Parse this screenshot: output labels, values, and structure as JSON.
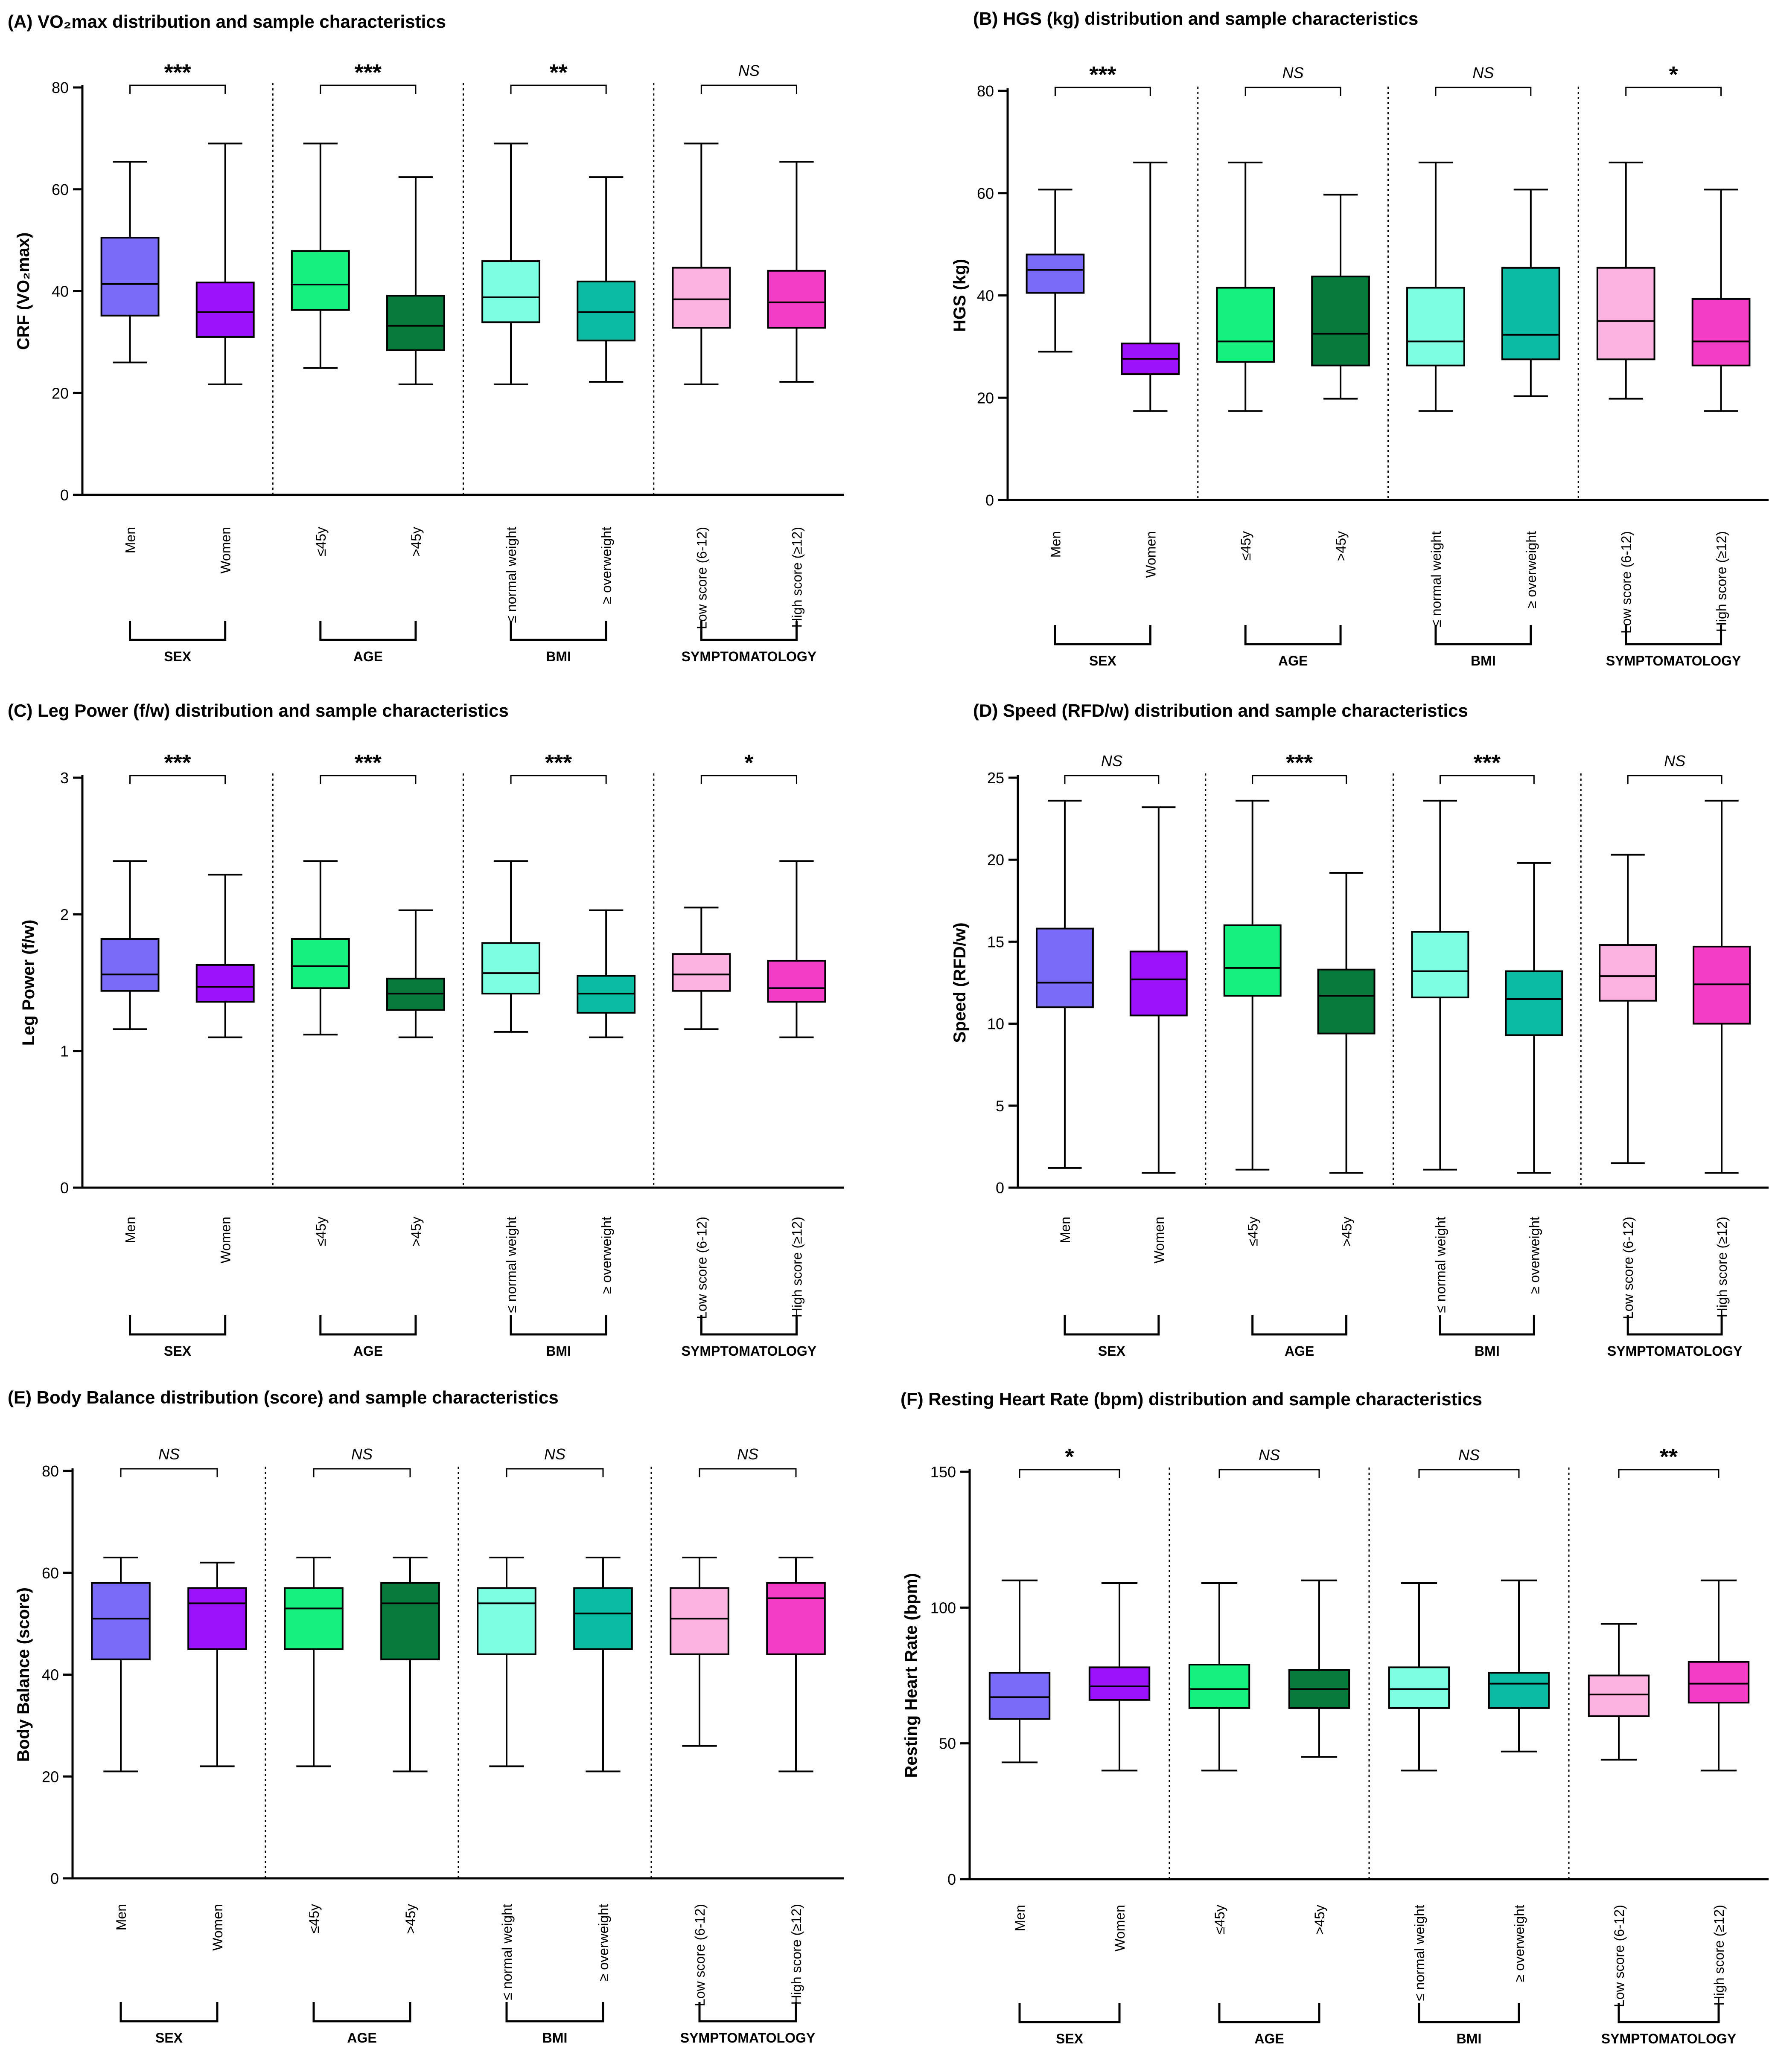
{
  "colors": {
    "Men": "#7a6cf9",
    "Women": "#9b12fb",
    "age_young": "#16f07f",
    "age_old": "#06793b",
    "bmi_normal": "#7cfee0",
    "bmi_over": "#0bbca3",
    "sym_low": "#fcb2e0",
    "sym_high": "#f33dc6"
  },
  "chart_data": [
    {
      "type": "box",
      "title": "(A) VO₂max distribution and sample characteristics",
      "ylabel": "CRF (VO₂max)",
      "ylim": [
        0,
        80
      ],
      "yticks": [
        "0",
        "20",
        "40",
        "60",
        "80"
      ],
      "categories": [
        "Men",
        "Women",
        "≤45y",
        ">45y",
        "≤ normal weight",
        "≥ overweight",
        "Low score (6-12)",
        "High score (≥12)"
      ],
      "groups": [
        "SEX",
        "AGE",
        "BMI",
        "SYMPTOMATOLOGY"
      ],
      "significance": [
        "***",
        "***",
        "**",
        "NS"
      ],
      "boxes": [
        {
          "min": 26,
          "q1": 35.2,
          "median": 41.4,
          "q3": 50.5,
          "max": 65.4
        },
        {
          "min": 21.7,
          "q1": 31,
          "median": 35.9,
          "q3": 41.7,
          "max": 69
        },
        {
          "min": 24.9,
          "q1": 36.3,
          "median": 41.3,
          "q3": 47.9,
          "max": 69
        },
        {
          "min": 21.7,
          "q1": 28.4,
          "median": 33.2,
          "q3": 39.1,
          "max": 62.4
        },
        {
          "min": 21.7,
          "q1": 33.9,
          "median": 38.8,
          "q3": 45.9,
          "max": 69
        },
        {
          "min": 22.2,
          "q1": 30.3,
          "median": 35.9,
          "q3": 41.9,
          "max": 62.4
        },
        {
          "min": 21.7,
          "q1": 32.8,
          "median": 38.4,
          "q3": 44.6,
          "max": 69
        },
        {
          "min": 22.2,
          "q1": 32.8,
          "median": 37.8,
          "q3": 44,
          "max": 65.4
        }
      ]
    },
    {
      "type": "box",
      "title": "(B) HGS (kg) distribution and sample characteristics",
      "ylabel": "HGS (kg)",
      "ylim": [
        0,
        80
      ],
      "yticks": [
        "0",
        "20",
        "40",
        "60",
        "80"
      ],
      "categories": [
        "Men",
        "Women",
        "≤45y",
        ">45y",
        "≤ normal weight",
        "≥ overweight",
        "Low score (6-12)",
        "High score (≥12)"
      ],
      "groups": [
        "SEX",
        "AGE",
        "BMI",
        "SYMPTOMATOLOGY"
      ],
      "significance": [
        "***",
        "NS",
        "NS",
        "*"
      ],
      "boxes": [
        {
          "min": 29,
          "q1": 40.5,
          "median": 45,
          "q3": 48,
          "max": 60.7
        },
        {
          "min": 17.4,
          "q1": 24.6,
          "median": 27.6,
          "q3": 30.6,
          "max": 66
        },
        {
          "min": 17.4,
          "q1": 27,
          "median": 31,
          "q3": 41.5,
          "max": 66
        },
        {
          "min": 19.8,
          "q1": 26.3,
          "median": 32.5,
          "q3": 43.7,
          "max": 59.7
        },
        {
          "min": 17.4,
          "q1": 26.3,
          "median": 31,
          "q3": 41.5,
          "max": 66
        },
        {
          "min": 20.3,
          "q1": 27.5,
          "median": 32.3,
          "q3": 45.4,
          "max": 60.7
        },
        {
          "min": 19.8,
          "q1": 27.5,
          "median": 35,
          "q3": 45.4,
          "max": 66
        },
        {
          "min": 17.4,
          "q1": 26.3,
          "median": 31,
          "q3": 39.3,
          "max": 60.7
        }
      ]
    },
    {
      "type": "box",
      "title": "(C) Leg Power (f/w) distribution and sample characteristics",
      "ylabel": "Leg Power (f/w)",
      "ylim": [
        0,
        3
      ],
      "yticks": [
        "0",
        "1",
        "2",
        "3"
      ],
      "categories": [
        "Men",
        "Women",
        "≤45y",
        ">45y",
        "≤ normal weight",
        "≥ overweight",
        "Low score (6-12)",
        "High score (≥12)"
      ],
      "groups": [
        "SEX",
        "AGE",
        "BMI",
        "SYMPTOMATOLOGY"
      ],
      "significance": [
        "***",
        "***",
        "***",
        "*"
      ],
      "boxes": [
        {
          "min": 1.16,
          "q1": 1.44,
          "median": 1.56,
          "q3": 1.82,
          "max": 2.39
        },
        {
          "min": 1.1,
          "q1": 1.36,
          "median": 1.47,
          "q3": 1.63,
          "max": 2.29
        },
        {
          "min": 1.12,
          "q1": 1.46,
          "median": 1.62,
          "q3": 1.82,
          "max": 2.39
        },
        {
          "min": 1.1,
          "q1": 1.3,
          "median": 1.42,
          "q3": 1.53,
          "max": 2.03
        },
        {
          "min": 1.14,
          "q1": 1.42,
          "median": 1.57,
          "q3": 1.79,
          "max": 2.39
        },
        {
          "min": 1.1,
          "q1": 1.28,
          "median": 1.42,
          "q3": 1.55,
          "max": 2.03
        },
        {
          "min": 1.16,
          "q1": 1.44,
          "median": 1.56,
          "q3": 1.71,
          "max": 2.05
        },
        {
          "min": 1.1,
          "q1": 1.36,
          "median": 1.46,
          "q3": 1.66,
          "max": 2.39
        }
      ]
    },
    {
      "type": "box",
      "title": "(D) Speed (RFD/w) distribution and sample characteristics",
      "ylabel": "Speed (RFD/w)",
      "ylim": [
        0,
        25
      ],
      "yticks": [
        "0",
        "5",
        "10",
        "15",
        "20",
        "25"
      ],
      "categories": [
        "Men",
        "Women",
        "≤45y",
        ">45y",
        "≤ normal weight",
        "≥ overweight",
        "Low score (6-12)",
        "High score (≥12)"
      ],
      "groups": [
        "SEX",
        "AGE",
        "BMI",
        "SYMPTOMATOLOGY"
      ],
      "significance": [
        "NS",
        "***",
        "***",
        "NS"
      ],
      "boxes": [
        {
          "min": 1.2,
          "q1": 11,
          "median": 12.5,
          "q3": 15.8,
          "max": 23.6
        },
        {
          "min": 0.9,
          "q1": 10.5,
          "median": 12.7,
          "q3": 14.4,
          "max": 23.2
        },
        {
          "min": 1.1,
          "q1": 11.7,
          "median": 13.4,
          "q3": 16,
          "max": 23.6
        },
        {
          "min": 0.9,
          "q1": 9.4,
          "median": 11.7,
          "q3": 13.3,
          "max": 19.2
        },
        {
          "min": 1.1,
          "q1": 11.6,
          "median": 13.2,
          "q3": 15.6,
          "max": 23.6
        },
        {
          "min": 0.9,
          "q1": 9.3,
          "median": 11.5,
          "q3": 13.2,
          "max": 19.8
        },
        {
          "min": 1.5,
          "q1": 11.4,
          "median": 12.9,
          "q3": 14.8,
          "max": 20.3
        },
        {
          "min": 0.9,
          "q1": 10,
          "median": 12.4,
          "q3": 14.7,
          "max": 23.6
        }
      ]
    },
    {
      "type": "box",
      "title": "(E) Body Balance distribution (score) and sample characteristics",
      "ylabel": "Body Balance (score)",
      "ylim": [
        0,
        80
      ],
      "yticks": [
        "0",
        "20",
        "40",
        "60",
        "80"
      ],
      "categories": [
        "Men",
        "Women",
        "≤45y",
        ">45y",
        "≤ normal weight",
        "≥ overweight",
        "Low score (6-12)",
        "High score (≥12)"
      ],
      "groups": [
        "SEX",
        "AGE",
        "BMI",
        "SYMPTOMATOLOGY"
      ],
      "significance": [
        "NS",
        "NS",
        "NS",
        "NS"
      ],
      "boxes": [
        {
          "min": 21,
          "q1": 43,
          "median": 51,
          "q3": 58,
          "max": 63
        },
        {
          "min": 22,
          "q1": 45,
          "median": 54,
          "q3": 57,
          "max": 62
        },
        {
          "min": 22,
          "q1": 45,
          "median": 53,
          "q3": 57,
          "max": 63
        },
        {
          "min": 21,
          "q1": 43,
          "median": 54,
          "q3": 58,
          "max": 63
        },
        {
          "min": 22,
          "q1": 44,
          "median": 54,
          "q3": 57,
          "max": 63
        },
        {
          "min": 21,
          "q1": 45,
          "median": 52,
          "q3": 57,
          "max": 63
        },
        {
          "min": 26,
          "q1": 44,
          "median": 51,
          "q3": 57,
          "max": 63
        },
        {
          "min": 21,
          "q1": 44,
          "median": 55,
          "q3": 58,
          "max": 63
        }
      ]
    },
    {
      "type": "box",
      "title": "(F) Resting Heart Rate (bpm) distribution and sample characteristics",
      "ylabel": "Resting Heart Rate (bpm)",
      "ylim": [
        0,
        150
      ],
      "yticks": [
        "0",
        "50",
        "100",
        "150"
      ],
      "categories": [
        "Men",
        "Women",
        "≤45y",
        ">45y",
        "≤ normal weight",
        "≥ overweight",
        "Low score (6-12)",
        "High score (≥12)"
      ],
      "groups": [
        "SEX",
        "AGE",
        "BMI",
        "SYMPTOMATOLOGY"
      ],
      "significance": [
        "*",
        "NS",
        "NS",
        "**"
      ],
      "boxes": [
        {
          "min": 43,
          "q1": 59,
          "median": 67,
          "q3": 76,
          "max": 110
        },
        {
          "min": 40,
          "q1": 66,
          "median": 71,
          "q3": 78,
          "max": 109
        },
        {
          "min": 40,
          "q1": 63,
          "median": 70,
          "q3": 79,
          "max": 109
        },
        {
          "min": 45,
          "q1": 63,
          "median": 70,
          "q3": 77,
          "max": 110
        },
        {
          "min": 40,
          "q1": 63,
          "median": 70,
          "q3": 78,
          "max": 109
        },
        {
          "min": 47,
          "q1": 63,
          "median": 72,
          "q3": 76,
          "max": 110
        },
        {
          "min": 44,
          "q1": 60,
          "median": 68,
          "q3": 75,
          "max": 94
        },
        {
          "min": 40,
          "q1": 65,
          "median": 72,
          "q3": 80,
          "max": 110
        }
      ]
    }
  ]
}
